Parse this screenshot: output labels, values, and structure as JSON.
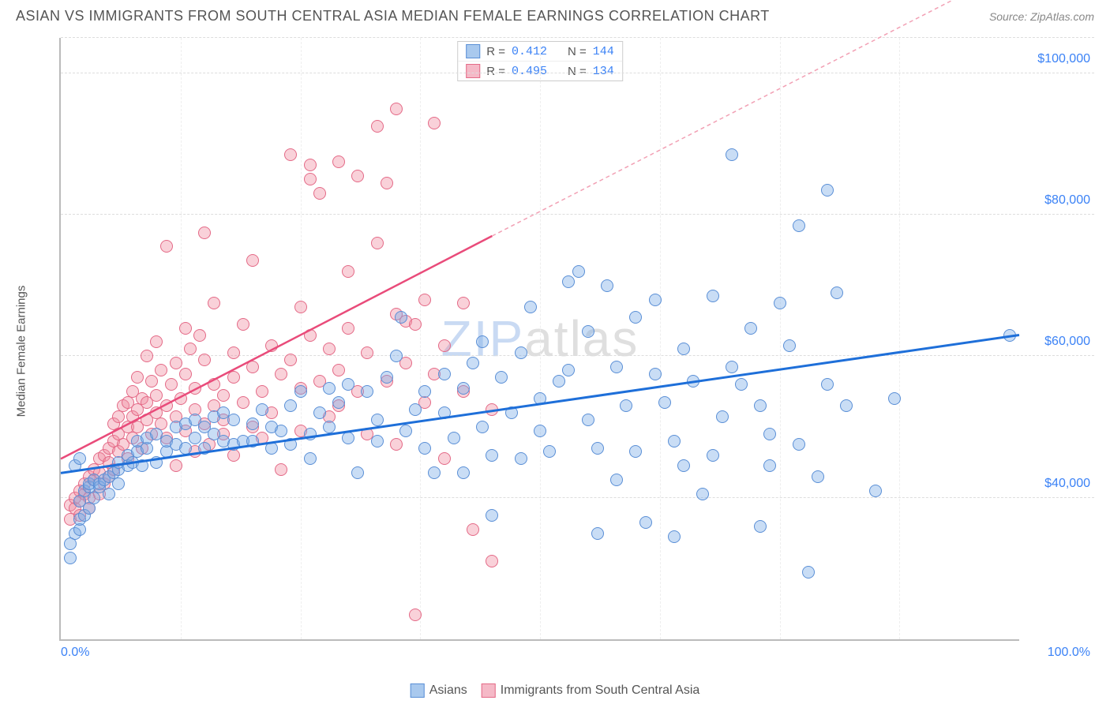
{
  "title": "ASIAN VS IMMIGRANTS FROM SOUTH CENTRAL ASIA MEDIAN FEMALE EARNINGS CORRELATION CHART",
  "source": "Source: ZipAtlas.com",
  "ylabel": "Median Female Earnings",
  "watermark_a": "ZIP",
  "watermark_b": "atlas",
  "chart": {
    "type": "scatter",
    "xlim": [
      0,
      100
    ],
    "ylim": [
      20000,
      105000
    ],
    "yticks": [
      40000,
      60000,
      80000,
      100000
    ],
    "ytick_labels": [
      "$40,000",
      "$60,000",
      "$80,000",
      "$100,000"
    ],
    "xticks": [
      0,
      100
    ],
    "xtick_labels": [
      "0.0%",
      "100.0%"
    ],
    "vgrid_positions": [
      12.5,
      25,
      37.5,
      50,
      62.5,
      75,
      87.5
    ],
    "background_color": "#ffffff",
    "grid_color": "#dddddd",
    "axis_color": "#bbbbbb",
    "marker_radius": 8,
    "marker_border_width": 1,
    "series": [
      {
        "name": "Asians",
        "fill": "rgba(120,170,230,0.4)",
        "stroke": "#5a8fd6",
        "swatch_fill": "#a9c9ee",
        "swatch_border": "#5a8fd6",
        "trend": {
          "x1": 0,
          "y1": 43500,
          "x2": 100,
          "y2": 63000,
          "color": "#1e6fd9",
          "width": 3,
          "dash": "none"
        },
        "R": "0.412",
        "N": "144",
        "points": [
          [
            1,
            31500
          ],
          [
            1,
            33500
          ],
          [
            1.5,
            35000
          ],
          [
            2,
            35500
          ],
          [
            2,
            37000
          ],
          [
            2.5,
            37500
          ],
          [
            2,
            39500
          ],
          [
            3,
            38500
          ],
          [
            2.5,
            41000
          ],
          [
            3,
            41500
          ],
          [
            3.5,
            40000
          ],
          [
            3,
            42000
          ],
          [
            3.5,
            42500
          ],
          [
            4,
            41500
          ],
          [
            4,
            42000
          ],
          [
            4.5,
            42500
          ],
          [
            5,
            40500
          ],
          [
            5,
            43000
          ],
          [
            5.5,
            43500
          ],
          [
            6,
            42000
          ],
          [
            6,
            44000
          ],
          [
            6,
            45000
          ],
          [
            1.5,
            44500
          ],
          [
            2,
            45500
          ],
          [
            7,
            44500
          ],
          [
            7,
            46000
          ],
          [
            7.5,
            45000
          ],
          [
            8,
            46500
          ],
          [
            8,
            48000
          ],
          [
            8.5,
            44500
          ],
          [
            9,
            47000
          ],
          [
            9,
            48500
          ],
          [
            10,
            45000
          ],
          [
            10,
            49000
          ],
          [
            11,
            46500
          ],
          [
            11,
            48000
          ],
          [
            12,
            47500
          ],
          [
            12,
            50000
          ],
          [
            13,
            47000
          ],
          [
            13,
            50500
          ],
          [
            14,
            48500
          ],
          [
            14,
            51000
          ],
          [
            15,
            47000
          ],
          [
            15,
            50000
          ],
          [
            16,
            49000
          ],
          [
            16,
            51500
          ],
          [
            17,
            48000
          ],
          [
            17,
            52000
          ],
          [
            18,
            47500
          ],
          [
            18,
            51000
          ],
          [
            19,
            48000
          ],
          [
            20,
            50500
          ],
          [
            20,
            48000
          ],
          [
            21,
            52500
          ],
          [
            22,
            47000
          ],
          [
            22,
            50000
          ],
          [
            23,
            49500
          ],
          [
            24,
            53000
          ],
          [
            24,
            47500
          ],
          [
            25,
            55000
          ],
          [
            26,
            49000
          ],
          [
            26,
            45500
          ],
          [
            27,
            52000
          ],
          [
            28,
            55500
          ],
          [
            28,
            50000
          ],
          [
            29,
            53500
          ],
          [
            30,
            56000
          ],
          [
            30,
            48500
          ],
          [
            31,
            43500
          ],
          [
            32,
            55000
          ],
          [
            33,
            51000
          ],
          [
            33,
            48000
          ],
          [
            34,
            57000
          ],
          [
            35,
            60000
          ],
          [
            35.5,
            65500
          ],
          [
            36,
            49500
          ],
          [
            37,
            52500
          ],
          [
            38,
            47000
          ],
          [
            38,
            55000
          ],
          [
            39,
            43500
          ],
          [
            40,
            57500
          ],
          [
            40,
            52000
          ],
          [
            41,
            48500
          ],
          [
            42,
            43500
          ],
          [
            42,
            55500
          ],
          [
            43,
            59000
          ],
          [
            44,
            50000
          ],
          [
            44,
            62000
          ],
          [
            45,
            46000
          ],
          [
            45,
            37500
          ],
          [
            46,
            57000
          ],
          [
            47,
            52000
          ],
          [
            48,
            45500
          ],
          [
            48,
            60500
          ],
          [
            49,
            67000
          ],
          [
            50,
            54000
          ],
          [
            50,
            49500
          ],
          [
            51,
            46500
          ],
          [
            52,
            56500
          ],
          [
            53,
            70500
          ],
          [
            53,
            58000
          ],
          [
            54,
            72000
          ],
          [
            55,
            51000
          ],
          [
            55,
            63500
          ],
          [
            56,
            47000
          ],
          [
            56,
            35000
          ],
          [
            57,
            70000
          ],
          [
            58,
            42500
          ],
          [
            58,
            58500
          ],
          [
            59,
            53000
          ],
          [
            60,
            65500
          ],
          [
            60,
            46500
          ],
          [
            61,
            36500
          ],
          [
            62,
            68000
          ],
          [
            62,
            57500
          ],
          [
            63,
            53500
          ],
          [
            64,
            48000
          ],
          [
            64,
            34500
          ],
          [
            65,
            61000
          ],
          [
            65,
            44500
          ],
          [
            66,
            56500
          ],
          [
            67,
            40500
          ],
          [
            68,
            46000
          ],
          [
            68,
            68500
          ],
          [
            69,
            51500
          ],
          [
            70,
            58500
          ],
          [
            70,
            88500
          ],
          [
            71,
            56000
          ],
          [
            72,
            64000
          ],
          [
            73,
            36000
          ],
          [
            73,
            53000
          ],
          [
            74,
            49000
          ],
          [
            74,
            44500
          ],
          [
            75,
            67500
          ],
          [
            76,
            61500
          ],
          [
            77,
            78500
          ],
          [
            77,
            47500
          ],
          [
            78,
            29500
          ],
          [
            79,
            43000
          ],
          [
            80,
            56000
          ],
          [
            80,
            83500
          ],
          [
            81,
            69000
          ],
          [
            82,
            53000
          ],
          [
            85,
            41000
          ],
          [
            87,
            54000
          ],
          [
            99,
            63000
          ]
        ]
      },
      {
        "name": "Immigrants from South Central Asia",
        "fill": "rgba(240,140,160,0.4)",
        "stroke": "#e46a87",
        "swatch_fill": "#f5b9c7",
        "swatch_border": "#e46a87",
        "trend_solid": {
          "x1": 0,
          "y1": 45500,
          "x2": 45,
          "y2": 77000,
          "color": "#e94b7a",
          "width": 2.5
        },
        "trend_dash": {
          "x1": 45,
          "y1": 77000,
          "x2": 94,
          "y2": 111000,
          "color": "#f2a0b4",
          "width": 1.5
        },
        "R": "0.495",
        "N": "134",
        "points": [
          [
            1,
            37000
          ],
          [
            1,
            39000
          ],
          [
            1.5,
            38500
          ],
          [
            1.5,
            40000
          ],
          [
            2,
            37500
          ],
          [
            2,
            39500
          ],
          [
            2,
            41000
          ],
          [
            2.5,
            40500
          ],
          [
            2.5,
            42000
          ],
          [
            3,
            40000
          ],
          [
            3,
            38500
          ],
          [
            3,
            43000
          ],
          [
            3.5,
            42500
          ],
          [
            3.5,
            44000
          ],
          [
            4,
            40500
          ],
          [
            4,
            43500
          ],
          [
            4,
            45500
          ],
          [
            4.5,
            42000
          ],
          [
            4.5,
            46000
          ],
          [
            5,
            43000
          ],
          [
            5,
            47000
          ],
          [
            5,
            45000
          ],
          [
            5.5,
            44000
          ],
          [
            5.5,
            48000
          ],
          [
            5.5,
            50500
          ],
          [
            6,
            46500
          ],
          [
            6,
            49000
          ],
          [
            6,
            51500
          ],
          [
            6.5,
            53000
          ],
          [
            6.5,
            47500
          ],
          [
            7,
            50000
          ],
          [
            7,
            45500
          ],
          [
            7,
            53500
          ],
          [
            7.5,
            51500
          ],
          [
            7.5,
            48500
          ],
          [
            7.5,
            55000
          ],
          [
            8,
            52500
          ],
          [
            8,
            50000
          ],
          [
            8,
            57000
          ],
          [
            8.5,
            47000
          ],
          [
            8.5,
            54000
          ],
          [
            9,
            51000
          ],
          [
            9,
            53500
          ],
          [
            9,
            60000
          ],
          [
            9.5,
            56500
          ],
          [
            9.5,
            49000
          ],
          [
            10,
            52000
          ],
          [
            10,
            54500
          ],
          [
            10,
            62000
          ],
          [
            10.5,
            50500
          ],
          [
            10.5,
            58000
          ],
          [
            11,
            48500
          ],
          [
            11,
            53000
          ],
          [
            11,
            75500
          ],
          [
            11.5,
            56000
          ],
          [
            12,
            51500
          ],
          [
            12,
            59000
          ],
          [
            12,
            44500
          ],
          [
            12.5,
            54000
          ],
          [
            13,
            49500
          ],
          [
            13,
            57500
          ],
          [
            13,
            64000
          ],
          [
            13.5,
            61000
          ],
          [
            14,
            52500
          ],
          [
            14,
            55500
          ],
          [
            14,
            46500
          ],
          [
            14.5,
            63000
          ],
          [
            15,
            50500
          ],
          [
            15,
            59500
          ],
          [
            15,
            77500
          ],
          [
            15.5,
            47500
          ],
          [
            16,
            53000
          ],
          [
            16,
            56000
          ],
          [
            16,
            67500
          ],
          [
            17,
            54500
          ],
          [
            17,
            51000
          ],
          [
            17,
            49000
          ],
          [
            18,
            57000
          ],
          [
            18,
            60500
          ],
          [
            18,
            46000
          ],
          [
            19,
            53500
          ],
          [
            19,
            64500
          ],
          [
            20,
            50000
          ],
          [
            20,
            58500
          ],
          [
            20,
            73500
          ],
          [
            21,
            55000
          ],
          [
            21,
            48500
          ],
          [
            22,
            52000
          ],
          [
            22,
            61500
          ],
          [
            23,
            57500
          ],
          [
            23,
            44000
          ],
          [
            24,
            59500
          ],
          [
            24,
            88500
          ],
          [
            25,
            55500
          ],
          [
            25,
            67000
          ],
          [
            25,
            49500
          ],
          [
            26,
            63000
          ],
          [
            26,
            85000
          ],
          [
            26,
            87000
          ],
          [
            27,
            83000
          ],
          [
            27,
            56500
          ],
          [
            28,
            51500
          ],
          [
            28,
            61000
          ],
          [
            29,
            53000
          ],
          [
            29,
            58000
          ],
          [
            29,
            87500
          ],
          [
            30,
            64000
          ],
          [
            30,
            72000
          ],
          [
            31,
            85500
          ],
          [
            31,
            55000
          ],
          [
            32,
            60500
          ],
          [
            32,
            49000
          ],
          [
            33,
            76000
          ],
          [
            33,
            92500
          ],
          [
            34,
            84500
          ],
          [
            34,
            56500
          ],
          [
            35,
            66000
          ],
          [
            35,
            95000
          ],
          [
            35,
            47500
          ],
          [
            36,
            59000
          ],
          [
            36,
            65000
          ],
          [
            37,
            64500
          ],
          [
            37,
            23500
          ],
          [
            38,
            68000
          ],
          [
            38,
            53500
          ],
          [
            39,
            57500
          ],
          [
            39,
            93000
          ],
          [
            40,
            61500
          ],
          [
            40,
            45500
          ],
          [
            42,
            67500
          ],
          [
            42,
            55000
          ],
          [
            43,
            35500
          ],
          [
            45,
            52500
          ],
          [
            45,
            31000
          ]
        ]
      }
    ]
  },
  "stats_box": {
    "rows": [
      {
        "series": 0,
        "r_label": "R = ",
        "n_label": "N = "
      },
      {
        "series": 1,
        "r_label": "R = ",
        "n_label": "N = "
      }
    ]
  },
  "legend": {
    "items": [
      {
        "series": 0
      },
      {
        "series": 1
      }
    ]
  }
}
